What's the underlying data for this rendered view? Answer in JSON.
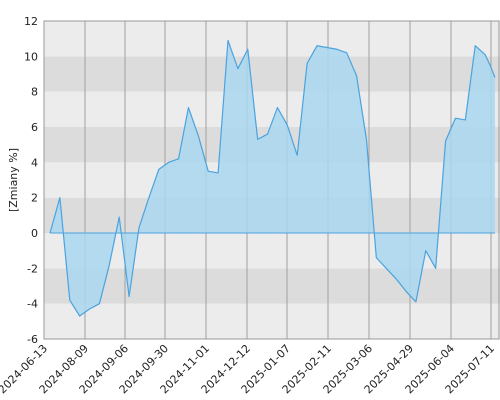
{
  "chart_data": {
    "type": "area",
    "title": "",
    "xlabel": "",
    "ylabel": "[Zmiany %]",
    "ylim": [
      -6,
      12
    ],
    "yticks": [
      -6,
      -4,
      -2,
      0,
      2,
      4,
      6,
      8,
      10,
      12
    ],
    "xticks": [
      "2024-06-13",
      "2024-08-09",
      "2024-09-06",
      "2024-09-30",
      "2024-11-01",
      "2024-12-12",
      "2025-01-07",
      "2025-02-11",
      "2025-03-06",
      "2025-04-29",
      "2025-06-04",
      "2025-07-11"
    ],
    "grid": true,
    "legend": "none",
    "colors": {
      "line": "#4aa3df",
      "fill": "#a9d7ee",
      "band_dark": "#dcdcdc",
      "band_light": "#ececec",
      "gridline": "#a0a0a0"
    },
    "series": [
      {
        "points": [
          [
            0.0,
            0.0
          ],
          [
            1.0,
            2.0
          ],
          [
            2.0,
            -3.8
          ],
          [
            3.0,
            -4.7
          ],
          [
            4.0,
            -4.3
          ],
          [
            5.0,
            -4.0
          ],
          [
            6.0,
            -1.8
          ],
          [
            7.0,
            0.9
          ],
          [
            8.0,
            -3.6
          ],
          [
            9.0,
            0.3
          ],
          [
            10.0,
            2.0
          ],
          [
            11.0,
            3.6
          ],
          [
            12.0,
            4.0
          ],
          [
            13.0,
            4.2
          ],
          [
            14.0,
            7.1
          ],
          [
            15.0,
            5.5
          ],
          [
            16.0,
            3.5
          ],
          [
            17.0,
            3.4
          ],
          [
            18.0,
            10.9
          ],
          [
            19.0,
            9.3
          ],
          [
            20.0,
            10.4
          ],
          [
            21.0,
            5.3
          ],
          [
            22.0,
            5.6
          ],
          [
            23.0,
            7.1
          ],
          [
            24.0,
            6.1
          ],
          [
            25.0,
            4.4
          ],
          [
            26.0,
            9.6
          ],
          [
            27.0,
            10.6
          ],
          [
            28.0,
            10.5
          ],
          [
            29.0,
            10.4
          ],
          [
            30.0,
            10.2
          ],
          [
            31.0,
            8.9
          ],
          [
            32.0,
            5.3
          ],
          [
            33.0,
            -1.4
          ],
          [
            34.0,
            -2.0
          ],
          [
            35.0,
            -2.6
          ],
          [
            36.0,
            -3.3
          ],
          [
            37.0,
            -3.9
          ],
          [
            38.0,
            -1.0
          ],
          [
            39.0,
            -2.0
          ],
          [
            40.0,
            5.2
          ],
          [
            41.0,
            6.5
          ],
          [
            42.0,
            6.4
          ],
          [
            43.0,
            10.6
          ],
          [
            44.0,
            10.1
          ],
          [
            44.5,
            9.5
          ],
          [
            45.0,
            8.8
          ]
        ],
        "x_range": [
          0.0,
          45.0
        ]
      }
    ]
  }
}
